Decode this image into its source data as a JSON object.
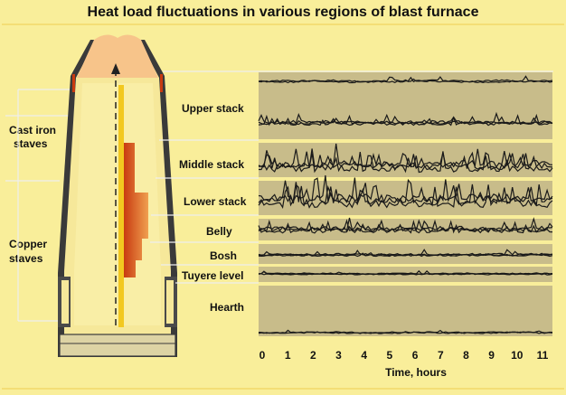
{
  "title": "Heat load fluctuations in various regions of blast furnace",
  "stave_labels": {
    "cast_iron_line1": "Cast iron",
    "cast_iron_line2": "staves",
    "copper_line1": "Copper",
    "copper_line2": "staves"
  },
  "regions": [
    {
      "key": "upper-stack",
      "label": "Upper stack"
    },
    {
      "key": "middle-stack",
      "label": "Middle stack"
    },
    {
      "key": "lower-stack",
      "label": "Lower stack"
    },
    {
      "key": "belly",
      "label": "Belly"
    },
    {
      "key": "bosh",
      "label": "Bosh"
    },
    {
      "key": "tuyere-level",
      "label": "Tuyere level"
    },
    {
      "key": "hearth",
      "label": "Hearth"
    }
  ],
  "x_axis": {
    "label": "Time, hours",
    "ticks": [
      "0",
      "1",
      "2",
      "3",
      "4",
      "5",
      "6",
      "7",
      "8",
      "9",
      "10",
      "11"
    ],
    "range": [
      0,
      11
    ]
  },
  "colors": {
    "background": "#f9ee9a",
    "panel": "#c8bc8a",
    "divider": "#f7e07a",
    "shell": "#3a3a3a",
    "gas_zone": "#f7c48a",
    "refractory": "#f6e89a",
    "heat_zone": "#d2561a",
    "trace": "#1a1a1a"
  }
}
